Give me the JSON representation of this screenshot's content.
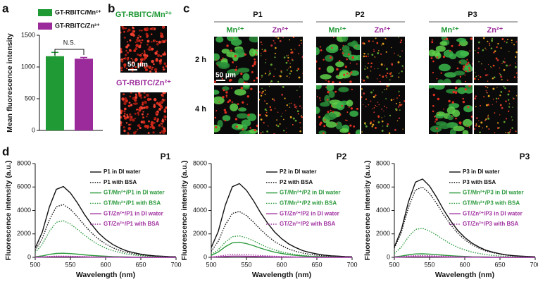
{
  "panel_labels": [
    "a",
    "b",
    "c",
    "d"
  ],
  "images": {
    "b": {
      "labels": [
        "GT-RBITC/Mn²⁺",
        "GT-RBITC/Zn²⁺"
      ],
      "scale_bar": "50 μm"
    },
    "c": {
      "groups": [
        "P1",
        "P2",
        "P3"
      ],
      "ions": [
        "Mn²⁺",
        "Zn²⁺"
      ],
      "rows": [
        "2 h",
        "4 h"
      ],
      "scale_bar": "50 μm"
    }
  },
  "chart_data": [
    {
      "type": "bar",
      "ylabel": "Mean fluorescence intensity",
      "annotation": "N.S.",
      "ylim": [
        0,
        1500
      ],
      "yticks": [
        0,
        500,
        1000,
        1500
      ],
      "series": [
        {
          "name": "GT-RBITC/Mn²⁺",
          "color": "#1f9a35",
          "values": [
            1170
          ],
          "errors": [
            60
          ]
        },
        {
          "name": "GT-RBITC/Zn²⁺",
          "color": "#9b2b9b",
          "values": [
            1130
          ],
          "errors": [
            20
          ]
        }
      ]
    },
    {
      "type": "line",
      "title": "P1",
      "xlabel": "Wavelength (nm)",
      "ylabel": "Fluorescence intensity (a.u.)",
      "x": [
        500,
        510,
        520,
        530,
        540,
        550,
        560,
        570,
        580,
        590,
        600,
        610,
        620,
        630,
        640,
        650,
        660,
        670,
        680,
        690,
        700
      ],
      "xlim": [
        500,
        700
      ],
      "xticks": [
        500,
        550,
        600,
        650,
        700
      ],
      "ylim": [
        0,
        8000
      ],
      "yticks": [
        0,
        2000,
        4000,
        6000,
        8000
      ],
      "series": [
        {
          "name": "P1 in DI water",
          "color": "#111111",
          "line_style": "solid",
          "values": [
            790,
            2140,
            4270,
            5800,
            6040,
            5490,
            4640,
            3660,
            2810,
            2070,
            1530,
            1100,
            790,
            550,
            400,
            270,
            180,
            120,
            90,
            60,
            50
          ]
        },
        {
          "name": "P1 with BSA",
          "color": "#111111",
          "line_style": "dotted",
          "values": [
            590,
            1590,
            3190,
            4320,
            4500,
            4100,
            3460,
            2730,
            2090,
            1550,
            1140,
            820,
            590,
            410,
            300,
            200,
            140,
            90,
            70,
            50,
            40
          ]
        },
        {
          "name": "GT/Mn²⁺/P1 in DI water",
          "color": "#2e9a3e",
          "line_style": "solid",
          "values": [
            50,
            120,
            250,
            330,
            350,
            320,
            270,
            210,
            160,
            120,
            90,
            60,
            50,
            30,
            20,
            20,
            10,
            10,
            10,
            0,
            0
          ]
        },
        {
          "name": "GT/Mn²⁺/P1 with BSA",
          "color": "#2e9a3e",
          "line_style": "dotted",
          "values": [
            410,
            1100,
            2210,
            2990,
            3120,
            2840,
            2390,
            1890,
            1450,
            1070,
            790,
            570,
            410,
            280,
            200,
            140,
            90,
            60,
            50,
            30,
            30
          ]
        },
        {
          "name": "GT/Zn²⁺/P1 in DI water",
          "color": "#a030a0",
          "line_style": "solid",
          "values": [
            10,
            20,
            40,
            50,
            50,
            50,
            40,
            30,
            20,
            20,
            10,
            10,
            10,
            0,
            0,
            0,
            0,
            0,
            0,
            0,
            0
          ]
        },
        {
          "name": "GT/Zn²⁺/P1 with BSA",
          "color": "#a030a0",
          "line_style": "dotted",
          "values": [
            10,
            40,
            70,
            100,
            100,
            90,
            80,
            60,
            50,
            30,
            30,
            20,
            10,
            10,
            10,
            0,
            0,
            0,
            0,
            0,
            0
          ]
        }
      ]
    },
    {
      "type": "line",
      "title": "P2",
      "xlabel": "Wavelength (nm)",
      "ylabel": "Fluorescence intensity (a.u.)",
      "x": [
        500,
        510,
        520,
        530,
        540,
        550,
        560,
        570,
        580,
        590,
        600,
        610,
        620,
        630,
        640,
        650,
        660,
        670,
        680,
        690,
        700
      ],
      "xlim": [
        500,
        700
      ],
      "xticks": [
        500,
        550,
        600,
        650,
        700
      ],
      "ylim": [
        0,
        8000
      ],
      "yticks": [
        0,
        2000,
        4000,
        6000,
        8000
      ],
      "series": [
        {
          "name": "P2 in DI water",
          "color": "#111111",
          "line_style": "solid",
          "values": [
            830,
            2220,
            4450,
            6030,
            6290,
            5720,
            4830,
            3810,
            2920,
            2160,
            1590,
            1140,
            830,
            570,
            410,
            290,
            190,
            130,
            100,
            60,
            50
          ]
        },
        {
          "name": "P2 with BSA",
          "color": "#111111",
          "line_style": "dotted",
          "values": [
            510,
            1380,
            2770,
            3750,
            3910,
            3560,
            3000,
            2370,
            1820,
            1340,
            990,
            710,
            510,
            360,
            260,
            180,
            120,
            80,
            60,
            40,
            30
          ]
        },
        {
          "name": "GT/Mn²⁺/P2 in DI water",
          "color": "#2e9a3e",
          "line_style": "solid",
          "values": [
            170,
            460,
            910,
            1240,
            1290,
            1170,
            990,
            780,
            600,
            440,
            330,
            230,
            170,
            120,
            80,
            60,
            40,
            30,
            20,
            10,
            10
          ]
        },
        {
          "name": "GT/Mn²⁺/P2 with BSA",
          "color": "#2e9a3e",
          "line_style": "dotted",
          "values": [
            240,
            650,
            1300,
            1760,
            1830,
            1670,
            1410,
            1110,
            850,
            630,
            460,
            330,
            240,
            170,
            120,
            80,
            60,
            40,
            30,
            20,
            10
          ]
        },
        {
          "name": "GT/Zn²⁺/P2 in DI water",
          "color": "#a030a0",
          "line_style": "solid",
          "values": [
            10,
            40,
            70,
            100,
            100,
            90,
            80,
            60,
            50,
            30,
            30,
            20,
            10,
            10,
            10,
            0,
            0,
            0,
            0,
            0,
            0
          ]
        },
        {
          "name": "GT/Zn²⁺/P2 with BSA",
          "color": "#a030a0",
          "line_style": "dotted",
          "values": [
            30,
            90,
            180,
            240,
            250,
            230,
            190,
            150,
            120,
            90,
            60,
            50,
            30,
            20,
            20,
            10,
            10,
            10,
            0,
            0,
            0
          ]
        }
      ]
    },
    {
      "type": "line",
      "title": "P3",
      "xlabel": "Wavelength (nm)",
      "ylabel": "Fluorescence intensity (a.u.)",
      "x": [
        500,
        510,
        520,
        530,
        540,
        550,
        560,
        570,
        580,
        590,
        600,
        610,
        620,
        630,
        640,
        650,
        660,
        670,
        680,
        690,
        700
      ],
      "xlim": [
        500,
        700
      ],
      "xticks": [
        500,
        550,
        600,
        650,
        700
      ],
      "ylim": [
        0,
        8000
      ],
      "yticks": [
        0,
        2000,
        4000,
        6000,
        8000
      ],
      "series": [
        {
          "name": "P3 in DI water",
          "color": "#111111",
          "line_style": "solid",
          "values": [
            880,
            2360,
            4730,
            6410,
            6680,
            6080,
            5130,
            4050,
            3110,
            2300,
            1690,
            1220,
            880,
            610,
            440,
            300,
            200,
            140,
            100,
            70,
            50
          ]
        },
        {
          "name": "P3 with BSA",
          "color": "#111111",
          "line_style": "dotted",
          "values": [
            790,
            2120,
            4240,
            5750,
            5990,
            5450,
            4600,
            3630,
            2780,
            2060,
            1510,
            1090,
            790,
            540,
            390,
            270,
            180,
            120,
            90,
            60,
            50
          ]
        },
        {
          "name": "GT/Mn²⁺/P3 in DI water",
          "color": "#2e9a3e",
          "line_style": "solid",
          "values": [
            40,
            110,
            210,
            290,
            300,
            270,
            230,
            180,
            140,
            100,
            80,
            50,
            40,
            30,
            20,
            10,
            10,
            10,
            0,
            0,
            0
          ]
        },
        {
          "name": "GT/Mn²⁺/P3 with BSA",
          "color": "#2e9a3e",
          "line_style": "dotted",
          "values": [
            330,
            880,
            1750,
            2380,
            2480,
            2250,
            1900,
            1500,
            1150,
            850,
            630,
            450,
            330,
            230,
            160,
            110,
            80,
            50,
            40,
            30,
            20
          ]
        },
        {
          "name": "GT/Zn²⁺/P3 in DI water",
          "color": "#a030a0",
          "line_style": "solid",
          "values": [
            10,
            20,
            40,
            50,
            50,
            50,
            40,
            30,
            20,
            20,
            10,
            10,
            10,
            0,
            0,
            0,
            0,
            0,
            0,
            0,
            0
          ]
        },
        {
          "name": "GT/Zn²⁺/P3 with BSA",
          "color": "#a030a0",
          "line_style": "dotted",
          "values": [
            20,
            50,
            110,
            140,
            150,
            140,
            110,
            90,
            70,
            50,
            40,
            30,
            20,
            10,
            10,
            10,
            0,
            0,
            0,
            0,
            0
          ]
        }
      ]
    }
  ]
}
